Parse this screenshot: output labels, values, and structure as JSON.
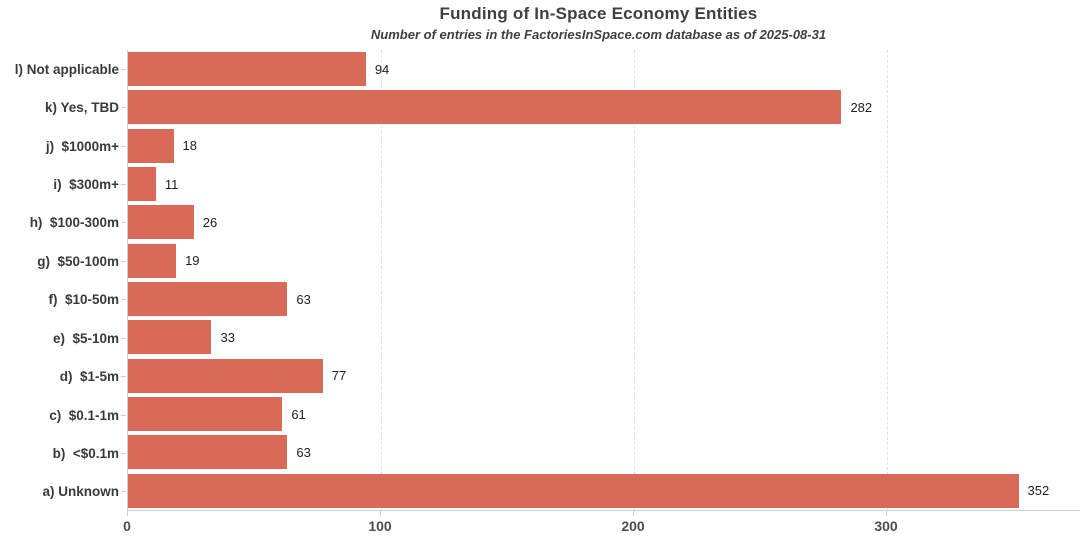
{
  "chart_data": {
    "type": "bar",
    "orientation": "horizontal",
    "title": "Funding of In-Space Economy Entities",
    "subtitle": "Number of entries in the FactoriesInSpace.com database as of 2025-08-31",
    "categories": [
      "l) Not applicable",
      "k) Yes, TBD",
      "j)  $1000m+",
      "i)  $300m+",
      "h)  $100-300m",
      "g)  $50-100m",
      "f)  $10-50m",
      "e)  $5-10m",
      "d)  $1-5m",
      "c)  $0.1-1m",
      "b)  <$0.1m",
      "a) Unknown"
    ],
    "values": [
      94,
      282,
      18,
      11,
      26,
      19,
      63,
      33,
      77,
      61,
      63,
      352
    ],
    "x_ticks": [
      0,
      100,
      200,
      300
    ],
    "xlim": [
      0,
      377
    ],
    "bar_color": "#d96a58",
    "grid": "vertical-dashed-at-ticks",
    "legend": "none",
    "value_labels": "outside-end"
  }
}
